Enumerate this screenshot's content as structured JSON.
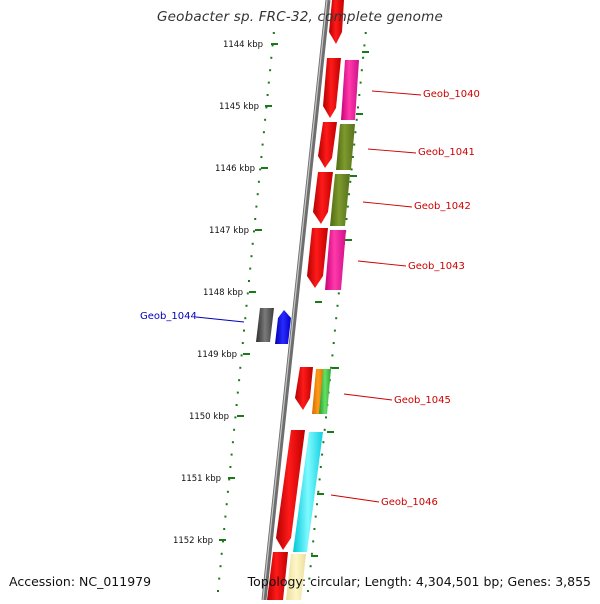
{
  "title": "Geobacter sp. FRC-32, complete genome",
  "accession": "Accession: NC_011979",
  "topology": "Topology: circular; Length: 4,304,501 bp; Genes: 3,855",
  "scale_labels": [
    "1144 kbp",
    "1145 kbp",
    "1146 kbp",
    "1147 kbp",
    "1148 kbp",
    "1149 kbp",
    "1150 kbp",
    "1151 kbp",
    "1152 kbp"
  ],
  "gene_labels": {
    "right": [
      "Geob_1040",
      "Geob_1041",
      "Geob_1042",
      "Geob_1043",
      "Geob_1045",
      "Geob_1046"
    ],
    "left": [
      "Geob_1044"
    ]
  },
  "colors": {
    "forward_label": "#cc0000",
    "reverse_label": "#0000bb",
    "tick": "#1a7a1a",
    "backbone": "#7a7a7a"
  }
}
